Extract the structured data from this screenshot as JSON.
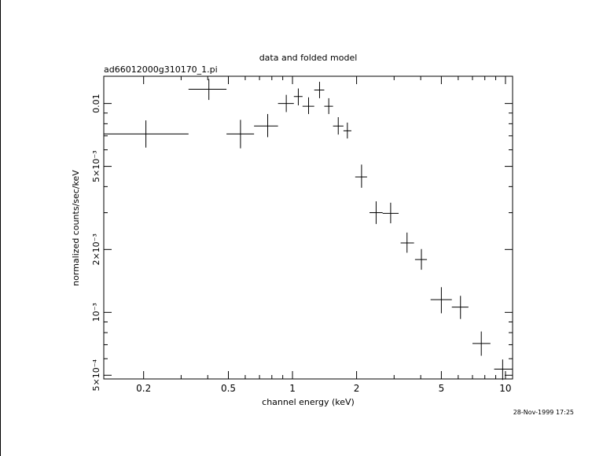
{
  "chart_data": {
    "type": "scatter",
    "title": "data and folded model",
    "subtitle": "ad66012000g310170_1.pi",
    "xlabel": "channel energy (keV)",
    "ylabel": "normalized counts/sec/keV",
    "xscale": "log",
    "yscale": "log",
    "xlim": [
      0.13,
      10.8
    ],
    "ylim": [
      0.00048,
      0.0135
    ],
    "x_ticks": [
      {
        "value": 0.2,
        "label": "0.2"
      },
      {
        "value": 0.5,
        "label": "0.5"
      },
      {
        "value": 1,
        "label": "1"
      },
      {
        "value": 2,
        "label": "2"
      },
      {
        "value": 5,
        "label": "5"
      },
      {
        "value": 10,
        "label": "10"
      }
    ],
    "y_ticks": [
      {
        "value": 0.0005,
        "label": "5×10⁻⁴"
      },
      {
        "value": 0.001,
        "label": "10⁻³"
      },
      {
        "value": 0.002,
        "label": "2×10⁻³"
      },
      {
        "value": 0.005,
        "label": "5×10⁻³"
      },
      {
        "value": 0.01,
        "label": "0.01"
      }
    ],
    "series": [
      {
        "points": [
          {
            "x": 0.205,
            "xlo": 0.13,
            "xhi": 0.325,
            "y": 0.00715,
            "ylo": 0.00615,
            "yhi": 0.0083
          },
          {
            "x": 0.405,
            "xlo": 0.325,
            "xhi": 0.49,
            "y": 0.0117,
            "ylo": 0.0104,
            "yhi": 0.0131
          },
          {
            "x": 0.57,
            "xlo": 0.49,
            "xhi": 0.66,
            "y": 0.00715,
            "ylo": 0.0061,
            "yhi": 0.00835
          },
          {
            "x": 0.765,
            "xlo": 0.66,
            "xhi": 0.855,
            "y": 0.0078,
            "ylo": 0.0069,
            "yhi": 0.0089
          },
          {
            "x": 0.935,
            "xlo": 0.855,
            "xhi": 1.015,
            "y": 0.01,
            "ylo": 0.0091,
            "yhi": 0.011
          },
          {
            "x": 1.065,
            "xlo": 1.015,
            "xhi": 1.115,
            "y": 0.0108,
            "ylo": 0.0098,
            "yhi": 0.0118
          },
          {
            "x": 1.19,
            "xlo": 1.115,
            "xhi": 1.265,
            "y": 0.0097,
            "ylo": 0.0089,
            "yhi": 0.0107
          },
          {
            "x": 1.34,
            "xlo": 1.265,
            "xhi": 1.41,
            "y": 0.0116,
            "ylo": 0.0106,
            "yhi": 0.0127
          },
          {
            "x": 1.48,
            "xlo": 1.41,
            "xhi": 1.55,
            "y": 0.0097,
            "ylo": 0.0089,
            "yhi": 0.0106
          },
          {
            "x": 1.64,
            "xlo": 1.55,
            "xhi": 1.735,
            "y": 0.0078,
            "ylo": 0.0071,
            "yhi": 0.0086
          },
          {
            "x": 1.81,
            "xlo": 1.735,
            "xhi": 1.89,
            "y": 0.0074,
            "ylo": 0.0068,
            "yhi": 0.0081
          },
          {
            "x": 2.11,
            "xlo": 1.97,
            "xhi": 2.24,
            "y": 0.00445,
            "ylo": 0.00395,
            "yhi": 0.0051
          },
          {
            "x": 2.47,
            "xlo": 2.3,
            "xhi": 2.65,
            "y": 0.003,
            "ylo": 0.00265,
            "yhi": 0.0034
          },
          {
            "x": 2.89,
            "xlo": 2.65,
            "xhi": 3.15,
            "y": 0.00298,
            "ylo": 0.00267,
            "yhi": 0.00335
          },
          {
            "x": 3.45,
            "xlo": 3.22,
            "xhi": 3.72,
            "y": 0.00215,
            "ylo": 0.00193,
            "yhi": 0.00241
          },
          {
            "x": 4.03,
            "xlo": 3.76,
            "xhi": 4.28,
            "y": 0.00179,
            "ylo": 0.0016,
            "yhi": 0.00201
          },
          {
            "x": 5.0,
            "xlo": 4.45,
            "xhi": 5.6,
            "y": 0.00115,
            "ylo": 0.00099,
            "yhi": 0.00132
          },
          {
            "x": 6.15,
            "xlo": 5.6,
            "xhi": 6.7,
            "y": 0.00106,
            "ylo": 0.00093,
            "yhi": 0.0012
          },
          {
            "x": 7.7,
            "xlo": 7.0,
            "xhi": 8.5,
            "y": 0.00071,
            "ylo": 0.00062,
            "yhi": 0.00081
          },
          {
            "x": 9.7,
            "xlo": 8.85,
            "xhi": 10.8,
            "y": 0.000535,
            "ylo": 0.000475,
            "yhi": 0.000595
          }
        ]
      }
    ],
    "grid": false
  },
  "timestamp": "28-Nov-1999 17:25"
}
